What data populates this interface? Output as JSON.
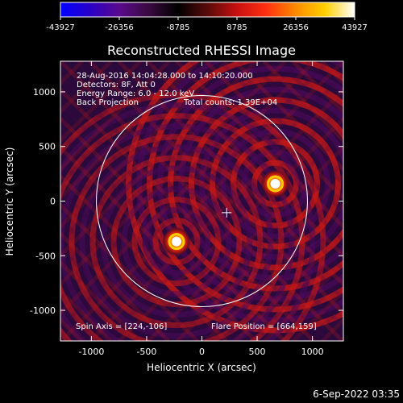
{
  "colorbar": {
    "ticks": [
      "-43927",
      "-26356",
      "-8785",
      "8785",
      "26356",
      "43927"
    ],
    "min": -43927,
    "max": 43927,
    "colors": [
      "#0000ff",
      "#2a00c8",
      "#5a0a8c",
      "#3a0a40",
      "#000000",
      "#5a0a0a",
      "#c81010",
      "#ff3010",
      "#ff8a00",
      "#ffd000",
      "#ffffff"
    ]
  },
  "title": "Reconstructed RHESSI Image",
  "info": {
    "line1": "28-Aug-2016 14:04:28.000 to 14:10:20.000",
    "line2": "Detectors: 8F, Att 0",
    "line3": "Energy Range: 6.0 - 12.0 keV",
    "line4a": "Back Projection",
    "line4b": "Total counts: 1.39E+04"
  },
  "footer": {
    "spin_axis": "Spin Axis = [224,-106]",
    "flare_position": "Flare Position = [664,159]"
  },
  "date_stamp": "6-Sep-2022 03:35",
  "chart_data": {
    "type": "heatmap",
    "title": "Reconstructed RHESSI Image",
    "xlabel": "Heliocentric X (arcsec)",
    "ylabel": "Heliocentric Y (arcsec)",
    "xlim": [
      -1280,
      1280
    ],
    "ylim": [
      -1280,
      1280
    ],
    "xticks": [
      "-1000",
      "-500",
      "0",
      "500",
      "1000"
    ],
    "yticks": [
      "-1000",
      "-500",
      "0",
      "500",
      "1000"
    ],
    "xtick_values": [
      -1000,
      -500,
      0,
      500,
      1000
    ],
    "ytick_values": [
      -1000,
      -500,
      0,
      500,
      1000
    ],
    "solar_radius_arcsec": 955,
    "sources": [
      {
        "x": 664,
        "y": 159
      },
      {
        "x": -230,
        "y": -370
      }
    ],
    "spin_axis": {
      "x": 224,
      "y": -106
    }
  }
}
